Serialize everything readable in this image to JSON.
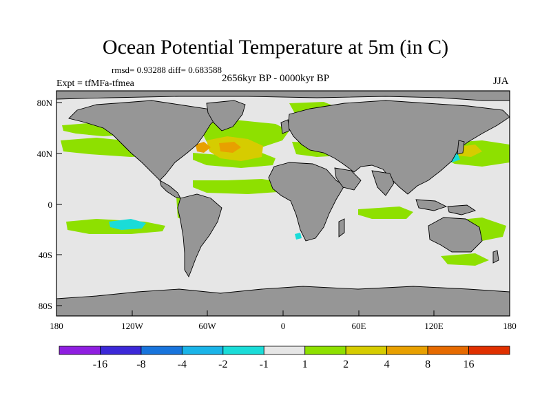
{
  "title": "Ocean Potential Temperature at 5m (in C)",
  "stats": "rmsd= 0.93288 diff= 0.683588",
  "experiment": "Expt = tfMFa-tfmea",
  "period": "2656kyr BP - 0000kyr BP",
  "season": "JJA",
  "lat_labels": [
    "80N",
    "40N",
    "0",
    "40S",
    "80S"
  ],
  "lon_labels": [
    "180",
    "120W",
    "60W",
    "0",
    "60E",
    "120E",
    "180"
  ],
  "colorbar": {
    "colors": [
      "#8f1ee0",
      "#3c28d8",
      "#1874dc",
      "#1ab4e8",
      "#1adcd8",
      "#e6e6e6",
      "#8ee000",
      "#d6cc00",
      "#e8a000",
      "#e66a00",
      "#e03000"
    ],
    "labels": [
      "-16",
      "-8",
      "-4",
      "-2",
      "-1",
      "1",
      "2",
      "4",
      "8",
      "16"
    ]
  },
  "colors": {
    "ocean_neutral": "#e6e6e6",
    "land": "#969696",
    "anomaly_1_2": "#8ee000",
    "anomaly_2_4": "#d6cc00",
    "anomaly_4_8": "#e8a000",
    "anomaly_neg": "#1adcd8"
  }
}
